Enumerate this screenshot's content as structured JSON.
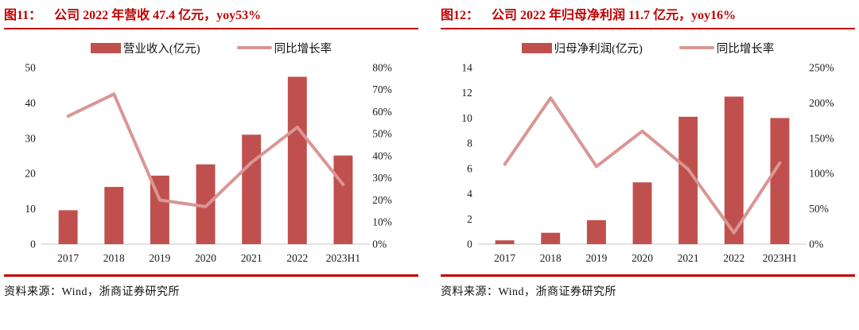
{
  "colors": {
    "bar": "#c0504d",
    "line": "#d99694",
    "title_red": "#c00000",
    "rule_red": "#c00000",
    "axis_text": "#1a1a1a",
    "axis_line": "#d9d9d9",
    "background": "#ffffff"
  },
  "panels": [
    {
      "figure_label": "图11："
    },
    {
      "figure_label": "图12："
    }
  ],
  "source": {
    "label": "资料来源：Wind，浙商证券研究所"
  },
  "chart_data": [
    {
      "type": "bar+line combo",
      "title": "公司 2022 年营收 47.4 亿元，yoy53%",
      "categories": [
        "2017",
        "2018",
        "2019",
        "2020",
        "2021",
        "2022",
        "2023H1"
      ],
      "series": [
        {
          "name": "营业收入(亿元)",
          "type": "bar",
          "axis": "left",
          "values": [
            9.6,
            16.2,
            19.4,
            22.6,
            31.0,
            47.4,
            25.1
          ]
        },
        {
          "name": "同比增长率",
          "type": "line",
          "axis": "right",
          "values": [
            58,
            68,
            20,
            17,
            37,
            53,
            27
          ],
          "unit": "%"
        }
      ],
      "left_axis": {
        "min": 0,
        "max": 50,
        "step": 10
      },
      "right_axis": {
        "min": 0,
        "max": 80,
        "step": 10,
        "unit": "%"
      },
      "grid": false,
      "legend_position": "top"
    },
    {
      "type": "bar+line combo",
      "title": "公司 2022 年归母净利润 11.7 亿元，yoy16%",
      "categories": [
        "2017",
        "2018",
        "2019",
        "2020",
        "2021",
        "2022",
        "2023H1"
      ],
      "series": [
        {
          "name": "归母净利润(亿元)",
          "type": "bar",
          "axis": "left",
          "values": [
            0.3,
            0.9,
            1.9,
            4.9,
            10.1,
            11.7,
            10.0
          ]
        },
        {
          "name": "同比增长率",
          "type": "line",
          "axis": "right",
          "values": [
            113,
            207,
            110,
            160,
            106,
            16,
            115
          ],
          "unit": "%"
        }
      ],
      "left_axis": {
        "min": 0,
        "max": 14,
        "step": 2
      },
      "right_axis": {
        "min": 0,
        "max": 250,
        "step": 50,
        "unit": "%"
      },
      "grid": false,
      "legend_position": "top"
    }
  ]
}
